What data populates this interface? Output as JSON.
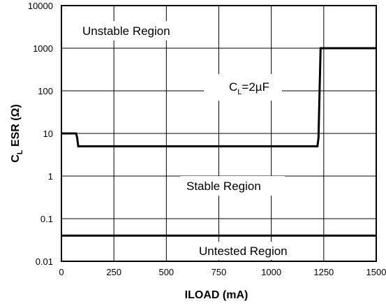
{
  "chart_data": {
    "type": "line",
    "xlabel": "ILOAD (mA)",
    "ylabel": {
      "main": "C",
      "sub": "L",
      "rest": " ESR (Ω)"
    },
    "xlim": [
      0,
      1500
    ],
    "ylim": [
      0.01,
      10000
    ],
    "yscale": "log",
    "grid": true,
    "x_ticks": [
      "0",
      "250",
      "500",
      "750",
      "1000",
      "1250",
      "1500"
    ],
    "y_ticks": [
      "0.01",
      "0.1",
      "1",
      "10",
      "100",
      "1000",
      "10000"
    ],
    "annotations": {
      "unstable": "Unstable Region",
      "stable": "Stable Region",
      "untested": "Untested Region",
      "cl_main": "C",
      "cl_sub": "L",
      "cl_rest": "=2µF"
    },
    "series": [
      {
        "x": [
          0,
          70,
          75,
          80,
          1220,
          1225,
          1235,
          1500
        ],
        "y": [
          10,
          10,
          8,
          5,
          5,
          8,
          1000,
          1000
        ]
      },
      {
        "x": [
          0,
          1500
        ],
        "y": [
          0.04,
          0.04
        ]
      }
    ]
  }
}
